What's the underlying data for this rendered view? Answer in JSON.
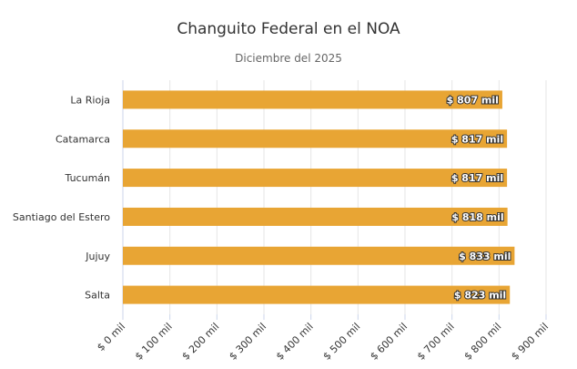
{
  "chart_data": {
    "type": "bar",
    "orientation": "horizontal",
    "title": "Changuito Federal en el NOA",
    "subtitle": "Diciembre del 2025",
    "categories": [
      "La Rioja",
      "Catamarca",
      "Tucumán",
      "Santiago del Estero",
      "Jujuy",
      "Salta"
    ],
    "values": [
      807,
      817,
      817,
      818,
      833,
      823
    ],
    "data_labels": [
      "$ 807 mil",
      "$ 817 mil",
      "$ 817 mil",
      "$ 818 mil",
      "$ 833 mil",
      "$ 823 mil"
    ],
    "xlim": [
      0,
      900
    ],
    "xticks": [
      0,
      100,
      200,
      300,
      400,
      500,
      600,
      700,
      800,
      900
    ],
    "xtick_labels": [
      "$ 0 mil",
      "$ 100 mil",
      "$ 200 mil",
      "$ 300 mil",
      "$ 400 mil",
      "$ 500 mil",
      "$ 600 mil",
      "$ 700 mil",
      "$ 800 mil",
      "$ 900 mil"
    ],
    "xlabel": "",
    "ylabel": "",
    "grid": true,
    "legend": "none",
    "bar_color": "#E8A534"
  }
}
